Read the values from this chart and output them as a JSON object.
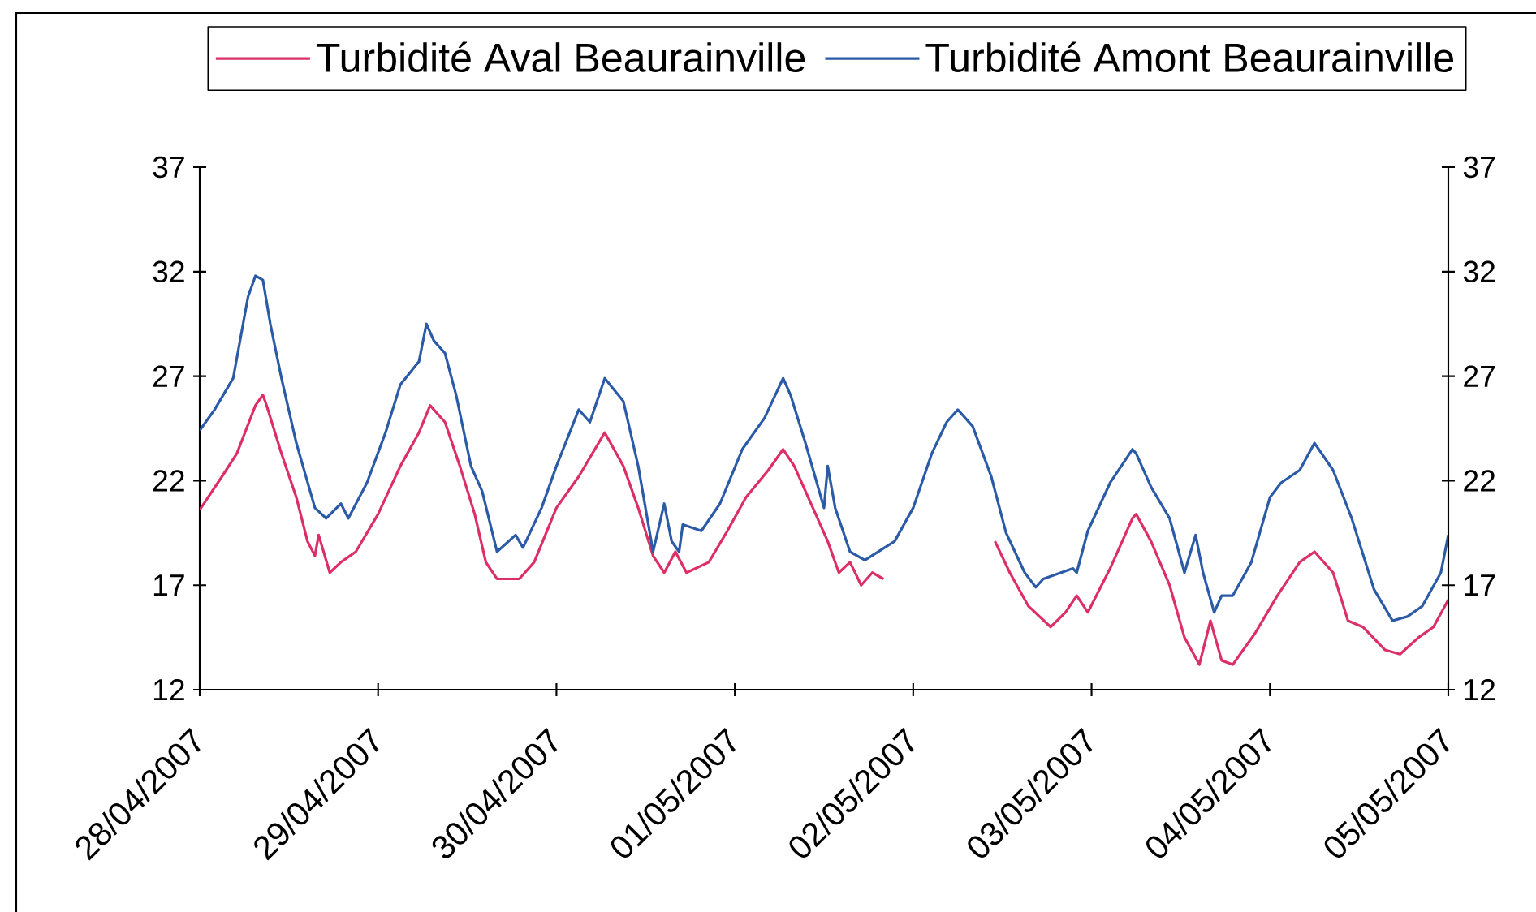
{
  "chart_data": {
    "type": "line",
    "series": [
      {
        "name": "Turbidité Aval Beaurainville",
        "color": "#dc2f66",
        "x": [
          "2007-04-28T00:00",
          "2007-04-28T03:00",
          "2007-04-28T05:00",
          "2007-04-28T07:30",
          "2007-04-28T08:30",
          "2007-04-28T09:00",
          "2007-04-28T11:00",
          "2007-04-28T13:00",
          "2007-04-28T14:30",
          "2007-04-28T15:30",
          "2007-04-28T16:00",
          "2007-04-28T17:30",
          "2007-04-28T19:00",
          "2007-04-28T21:00",
          "2007-04-29T00:00",
          "2007-04-29T03:00",
          "2007-04-29T05:30",
          "2007-04-29T07:00",
          "2007-04-29T09:00",
          "2007-04-29T11:00",
          "2007-04-29T13:00",
          "2007-04-29T14:30",
          "2007-04-29T16:00",
          "2007-04-29T19:00",
          "2007-04-29T21:00",
          "2007-04-30T00:00",
          "2007-04-30T03:00",
          "2007-04-30T06:30",
          "2007-04-30T09:00",
          "2007-04-30T11:00",
          "2007-04-30T13:00",
          "2007-04-30T14:30",
          "2007-04-30T16:00",
          "2007-04-30T17:30",
          "2007-04-30T20:30",
          "2007-04-30T23:00",
          "2007-05-01T01:30",
          "2007-05-01T04:30",
          "2007-05-01T06:30",
          "2007-05-01T08:00",
          "2007-05-01T10:30",
          "2007-05-01T12:30",
          "2007-05-01T14:00",
          "2007-05-01T15:30",
          "2007-05-01T17:00",
          "2007-05-01T18:30",
          "2007-05-01T20:00",
          "2007-05-02T03:00",
          "2007-05-02T11:00",
          "2007-05-02T13:00",
          "2007-05-02T15:30",
          "2007-05-02T18:30",
          "2007-05-02T20:30",
          "2007-05-02T22:00",
          "2007-05-02T23:30",
          "2007-05-03T02:30",
          "2007-05-03T05:30",
          "2007-05-03T06:00",
          "2007-05-03T08:00",
          "2007-05-03T10:30",
          "2007-05-03T12:30",
          "2007-05-03T14:30",
          "2007-05-03T16:00",
          "2007-05-03T17:30",
          "2007-05-03T19:00",
          "2007-05-03T22:00",
          "2007-05-04T01:00",
          "2007-05-04T04:00",
          "2007-05-04T06:00",
          "2007-05-04T08:30",
          "2007-05-04T10:30",
          "2007-05-04T12:30",
          "2007-05-04T15:30",
          "2007-05-04T17:30",
          "2007-05-04T20:00",
          "2007-05-04T22:00",
          "2007-05-05T00:00"
        ],
        "values": [
          20.6,
          22.2,
          23.3,
          25.6,
          26.1,
          25.6,
          23.3,
          21.2,
          19.1,
          18.4,
          19.4,
          17.6,
          18.1,
          18.6,
          20.4,
          22.7,
          24.3,
          25.6,
          24.8,
          22.7,
          20.4,
          18.1,
          17.3,
          17.3,
          18.1,
          20.7,
          22.2,
          24.3,
          22.7,
          20.7,
          18.4,
          17.6,
          18.6,
          17.6,
          18.1,
          19.6,
          21.2,
          22.5,
          23.5,
          22.7,
          20.7,
          19.1,
          17.6,
          18.1,
          17.0,
          17.6,
          17.3,
          null,
          19.1,
          17.6,
          16.0,
          15.0,
          15.7,
          16.5,
          15.7,
          17.8,
          20.2,
          20.4,
          19.1,
          17.0,
          14.5,
          13.2,
          15.3,
          13.4,
          13.2,
          14.7,
          16.5,
          18.1,
          18.6,
          17.6,
          15.3,
          15.0,
          13.9,
          13.7,
          14.5,
          15.0,
          16.3
        ]
      },
      {
        "name": "Turbidité Amont Beaurainville",
        "color": "#2b5aa6",
        "x": [
          "2007-04-28T00:00",
          "2007-04-28T02:00",
          "2007-04-28T04:30",
          "2007-04-28T06:30",
          "2007-04-28T07:30",
          "2007-04-28T08:30",
          "2007-04-28T09:30",
          "2007-04-28T11:00",
          "2007-04-28T13:00",
          "2007-04-28T15:30",
          "2007-04-28T17:00",
          "2007-04-28T19:00",
          "2007-04-28T20:00",
          "2007-04-28T22:30",
          "2007-04-29T01:00",
          "2007-04-29T03:00",
          "2007-04-29T05:30",
          "2007-04-29T06:30",
          "2007-04-29T07:30",
          "2007-04-29T09:00",
          "2007-04-29T10:30",
          "2007-04-29T12:30",
          "2007-04-29T14:00",
          "2007-04-29T16:00",
          "2007-04-29T18:30",
          "2007-04-29T19:30",
          "2007-04-29T22:00",
          "2007-04-30T00:00",
          "2007-04-30T03:00",
          "2007-04-30T04:30",
          "2007-04-30T06:30",
          "2007-04-30T09:00",
          "2007-04-30T11:00",
          "2007-04-30T13:00",
          "2007-04-30T14:30",
          "2007-04-30T15:30",
          "2007-04-30T16:30",
          "2007-04-30T17:00",
          "2007-04-30T19:30",
          "2007-04-30T22:00",
          "2007-05-01T01:00",
          "2007-05-01T04:00",
          "2007-05-01T06:30",
          "2007-05-01T07:30",
          "2007-05-01T09:30",
          "2007-05-01T12:00",
          "2007-05-01T12:30",
          "2007-05-01T13:30",
          "2007-05-01T15:30",
          "2007-05-01T17:30",
          "2007-05-01T21:30",
          "2007-05-02T00:00",
          "2007-05-02T02:30",
          "2007-05-02T04:30",
          "2007-05-02T06:00",
          "2007-05-02T08:00",
          "2007-05-02T10:30",
          "2007-05-02T12:30",
          "2007-05-02T15:00",
          "2007-05-02T16:30",
          "2007-05-02T17:30",
          "2007-05-02T21:30",
          "2007-05-02T22:00",
          "2007-05-02T23:30",
          "2007-05-03T02:30",
          "2007-05-03T05:30",
          "2007-05-03T06:00",
          "2007-05-03T08:00",
          "2007-05-03T10:30",
          "2007-05-03T12:30",
          "2007-05-03T14:00",
          "2007-05-03T15:00",
          "2007-05-03T16:30",
          "2007-05-03T17:30",
          "2007-05-03T19:00",
          "2007-05-03T21:30",
          "2007-05-04T00:00",
          "2007-05-04T01:30",
          "2007-05-04T04:00",
          "2007-05-04T06:00",
          "2007-05-04T08:30",
          "2007-05-04T11:00",
          "2007-05-04T14:00",
          "2007-05-04T16:30",
          "2007-05-04T18:30",
          "2007-05-04T20:30",
          "2007-05-04T23:00",
          "2007-05-05T00:00"
        ],
        "values": [
          24.4,
          25.4,
          26.9,
          30.8,
          31.8,
          31.6,
          29.5,
          26.9,
          23.8,
          20.7,
          20.2,
          20.9,
          20.2,
          21.9,
          24.3,
          26.6,
          27.7,
          29.5,
          28.7,
          28.1,
          26.1,
          22.7,
          21.5,
          18.6,
          19.4,
          18.8,
          20.7,
          22.7,
          25.4,
          24.8,
          26.9,
          25.8,
          22.7,
          18.6,
          20.9,
          19.1,
          18.6,
          19.9,
          19.6,
          20.9,
          23.5,
          25.0,
          26.9,
          26.1,
          23.8,
          20.7,
          22.7,
          20.7,
          18.6,
          18.2,
          19.1,
          20.7,
          23.3,
          24.8,
          25.4,
          24.6,
          22.2,
          19.5,
          17.6,
          16.9,
          17.3,
          17.8,
          17.6,
          19.6,
          21.9,
          23.5,
          23.3,
          21.7,
          20.2,
          17.6,
          19.4,
          17.6,
          15.7,
          16.5,
          16.5,
          18.1,
          21.2,
          21.9,
          22.5,
          23.8,
          22.5,
          20.2,
          16.8,
          15.3,
          15.5,
          16.0,
          17.6,
          19.4
        ]
      }
    ],
    "xlim": [
      "2007-04-28",
      "2007-05-05"
    ],
    "xticks": [
      {
        "value": "2007-04-28",
        "label": "28/04/2007"
      },
      {
        "value": "2007-04-29",
        "label": "29/04/2007"
      },
      {
        "value": "2007-04-30",
        "label": "30/04/2007"
      },
      {
        "value": "2007-05-01",
        "label": "01/05/2007"
      },
      {
        "value": "2007-05-02",
        "label": "02/05/2007"
      },
      {
        "value": "2007-05-03",
        "label": "03/05/2007"
      },
      {
        "value": "2007-05-04",
        "label": "04/05/2007"
      },
      {
        "value": "2007-05-05",
        "label": "05/05/2007"
      }
    ],
    "ylim": [
      12,
      37
    ],
    "yticks": [
      12,
      17,
      22,
      27,
      32,
      37
    ],
    "y2lim": [
      12,
      37
    ],
    "y2ticks": [
      12,
      17,
      22,
      27,
      32,
      37
    ],
    "legend": "top",
    "marker": "none",
    "line_style": "solid"
  }
}
